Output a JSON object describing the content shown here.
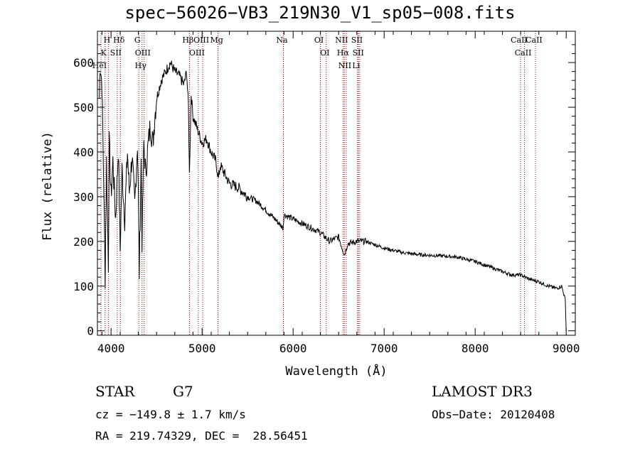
{
  "chart_data": {
    "type": "line",
    "title": "spec−56026−VB3_219N30_V1_sp05−008.fits",
    "xlabel": "Wavelength (Å)",
    "ylabel": "Flux (relative)",
    "xlim": [
      3850,
      9100
    ],
    "ylim": [
      -10,
      670
    ],
    "x_ticks": [
      4000,
      5000,
      6000,
      7000,
      8000,
      9000
    ],
    "x_tick_labels": [
      "4000",
      "5000",
      "6000",
      "7000",
      "8000",
      "9000"
    ],
    "y_ticks": [
      0,
      100,
      200,
      300,
      400,
      500,
      600
    ],
    "y_tick_labels": [
      "0",
      "100",
      "200",
      "300",
      "400",
      "500",
      "600"
    ],
    "series": [
      {
        "name": "spectrum",
        "color": "#000000",
        "x": [
          3870,
          3880,
          3900,
          3920,
          3935,
          3950,
          3970,
          3980,
          4000,
          4020,
          4050,
          4080,
          4100,
          4120,
          4150,
          4180,
          4200,
          4230,
          4260,
          4290,
          4300,
          4310,
          4330,
          4340,
          4360,
          4380,
          4400,
          4430,
          4460,
          4480,
          4500,
          4550,
          4600,
          4650,
          4700,
          4750,
          4800,
          4830,
          4850,
          4861,
          4880,
          4900,
          4950,
          5000,
          5050,
          5100,
          5150,
          5180,
          5200,
          5300,
          5400,
          5500,
          5600,
          5700,
          5800,
          5890,
          5900,
          6000,
          6100,
          6200,
          6300,
          6400,
          6500,
          6563,
          6600,
          6700,
          6800,
          7000,
          7200,
          7400,
          7600,
          7800,
          8000,
          8200,
          8400,
          8500,
          8600,
          8700,
          8800,
          8900,
          8950,
          8990,
          9000
        ],
        "values": [
          520,
          600,
          550,
          320,
          120,
          380,
          150,
          420,
          300,
          380,
          250,
          410,
          180,
          360,
          250,
          400,
          310,
          390,
          280,
          420,
          300,
          130,
          380,
          200,
          420,
          350,
          400,
          460,
          420,
          480,
          520,
          560,
          580,
          600,
          580,
          570,
          550,
          580,
          500,
          350,
          530,
          480,
          450,
          420,
          430,
          400,
          380,
          340,
          370,
          330,
          320,
          300,
          290,
          270,
          250,
          230,
          260,
          250,
          240,
          230,
          220,
          200,
          210,
          170,
          195,
          200,
          200,
          185,
          175,
          170,
          168,
          165,
          155,
          140,
          125,
          125,
          115,
          110,
          100,
          95,
          100,
          70,
          0
        ]
      }
    ],
    "spectral_lines": [
      {
        "name": "H",
        "wavelength": 3970
      },
      {
        "name": "K",
        "wavelength": 3934
      },
      {
        "name": "HeI",
        "wavelength": 3889
      },
      {
        "name": "SII",
        "wavelength": 4068
      },
      {
        "name": "Hδ",
        "wavelength": 4102
      },
      {
        "name": "G",
        "wavelength": 4305
      },
      {
        "name": "OIII",
        "wavelength": 4364
      },
      {
        "name": "Hγ",
        "wavelength": 4340
      },
      {
        "name": "Hβ",
        "wavelength": 4861
      },
      {
        "name": "OIII",
        "wavelength": 4959
      },
      {
        "name": "OIII",
        "wavelength": 5007
      },
      {
        "name": "Mg",
        "wavelength": 5175
      },
      {
        "name": "Na",
        "wavelength": 5893
      },
      {
        "name": "OI",
        "wavelength": 6300
      },
      {
        "name": "OI",
        "wavelength": 6364
      },
      {
        "name": "NII",
        "wavelength": 6548
      },
      {
        "name": "Hα",
        "wavelength": 6563
      },
      {
        "name": "NII",
        "wavelength": 6584
      },
      {
        "name": "SII",
        "wavelength": 6717
      },
      {
        "name": "SII",
        "wavelength": 6731
      },
      {
        "name": "Li",
        "wavelength": 6708
      },
      {
        "name": "CaII",
        "wavelength": 8498
      },
      {
        "name": "CaII",
        "wavelength": 8542
      },
      {
        "name": "CaII",
        "wavelength": 8662
      }
    ],
    "line_color": "#8b0000"
  },
  "info": {
    "object_class": "STAR",
    "subclass": "G7",
    "survey": "LAMOST DR3",
    "cz": "cz = −149.8 ± 1.7 km/s",
    "obs_date": "Obs−Date: 20120408",
    "coords": "RA = 219.74329, DEC =  28.56451"
  }
}
